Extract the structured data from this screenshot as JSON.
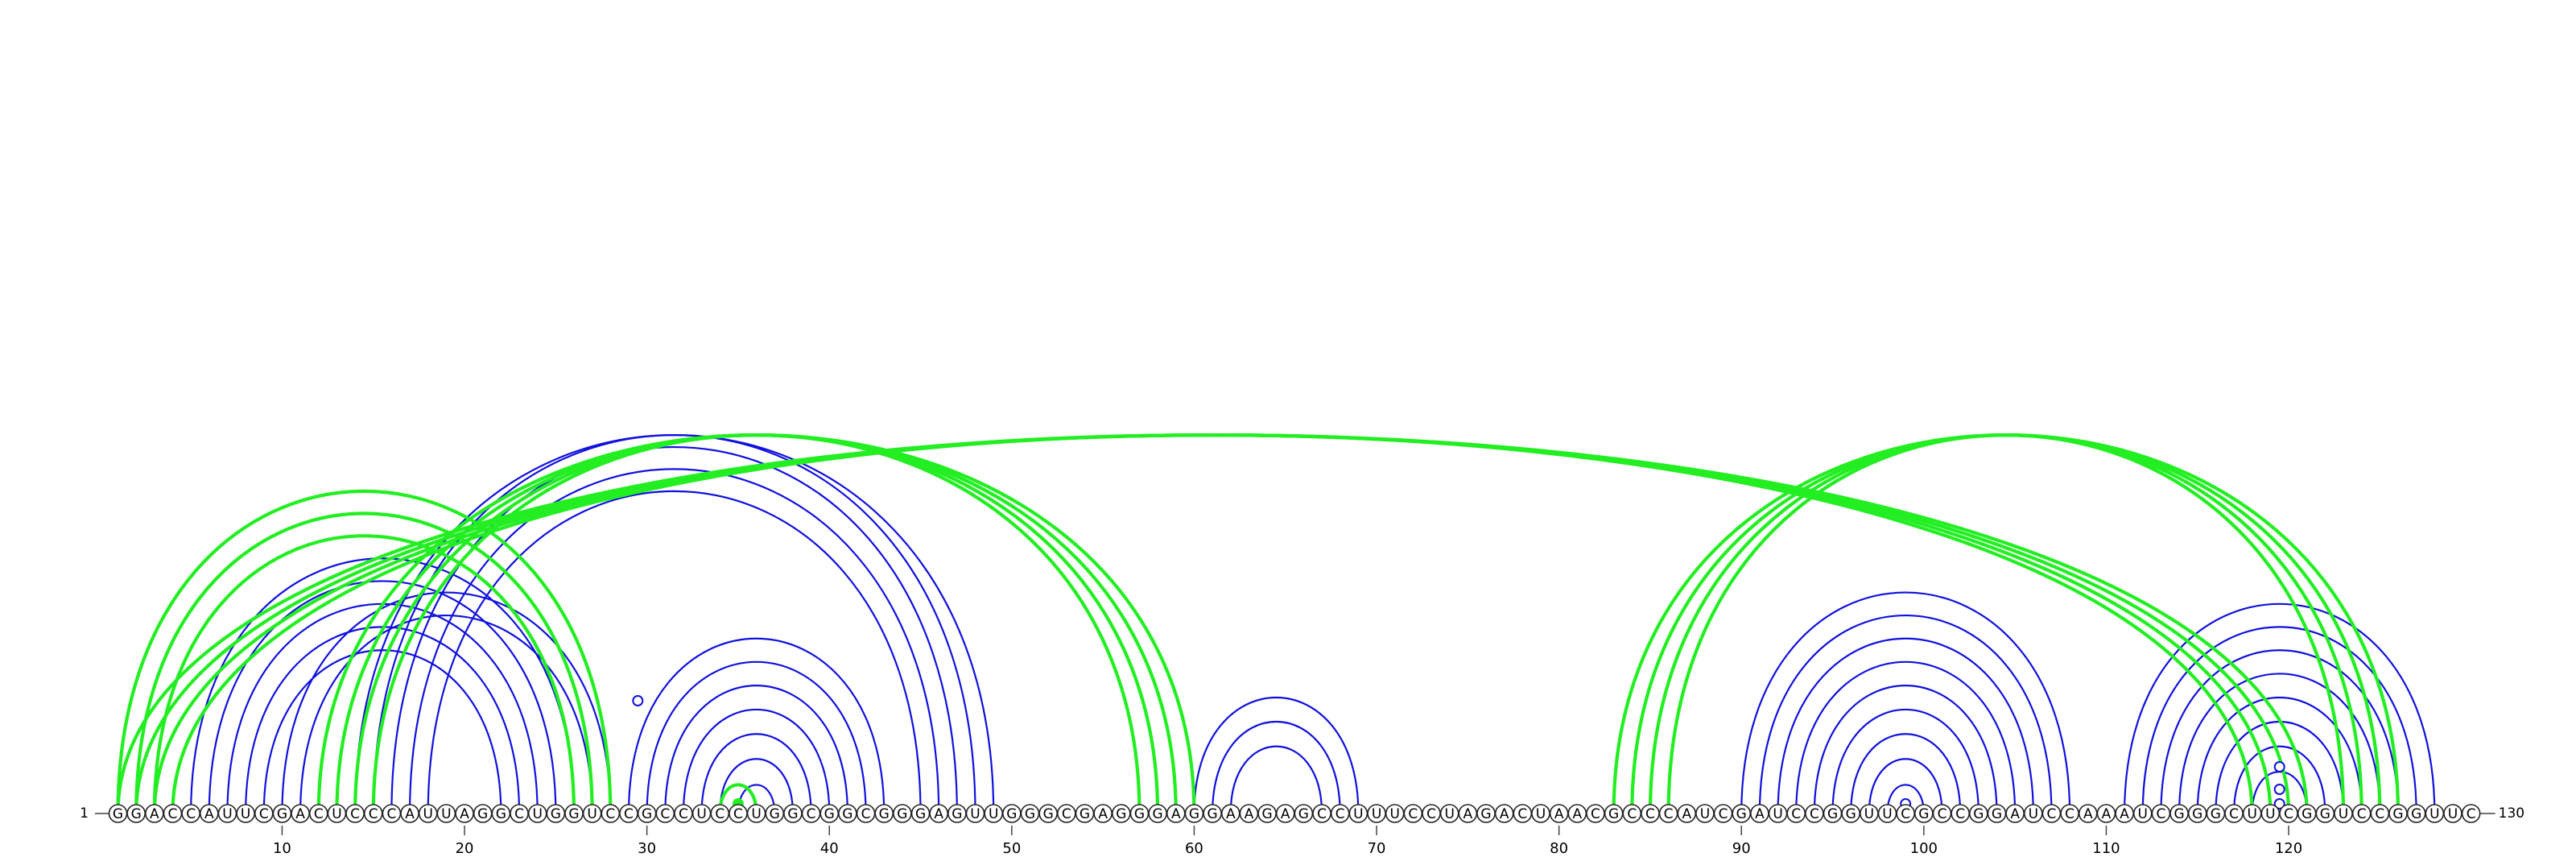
{
  "sequence": "GGACCAUUCGACUCCCAUUAGGCUGGUCCGCCUCCUGGCGGCGGGAGUUGGGCGAGGGAGGAAGAGCCUUUCCUAGACUAACGCCCAUCGAUCCGGUUCGCCGGAUCCAAAUCGGGCUUCGGUCCGGUUC",
  "start_label": "1",
  "end_label": "130",
  "ticks": [
    10,
    20,
    30,
    40,
    50,
    60,
    70,
    80,
    90,
    100,
    110,
    120
  ],
  "colors": {
    "blue": "#1010dd",
    "green": "#22ee22",
    "outline": "#222222"
  },
  "blue_arcs": [
    [
      5,
      26
    ],
    [
      6,
      25
    ],
    [
      7,
      24
    ],
    [
      8,
      23
    ],
    [
      9,
      22
    ],
    [
      10,
      28
    ],
    [
      11,
      27
    ],
    [
      14,
      49
    ],
    [
      15,
      48
    ],
    [
      16,
      47
    ],
    [
      17,
      46
    ],
    [
      18,
      45
    ],
    [
      29,
      43
    ],
    [
      30,
      42
    ],
    [
      31,
      41
    ],
    [
      32,
      40
    ],
    [
      33,
      39
    ],
    [
      34,
      38
    ],
    [
      35,
      37
    ],
    [
      60,
      69
    ],
    [
      61,
      68
    ],
    [
      62,
      67
    ],
    [
      90,
      108
    ],
    [
      91,
      107
    ],
    [
      92,
      106
    ],
    [
      93,
      105
    ],
    [
      94,
      104
    ],
    [
      95,
      103
    ],
    [
      96,
      102
    ],
    [
      97,
      101
    ],
    [
      98,
      100
    ],
    [
      111,
      128
    ],
    [
      112,
      127
    ],
    [
      113,
      126
    ],
    [
      114,
      125
    ],
    [
      115,
      124
    ],
    [
      116,
      123
    ],
    [
      117,
      122
    ],
    [
      118,
      121
    ]
  ],
  "green_arcs": [
    [
      1,
      121
    ],
    [
      2,
      120
    ],
    [
      3,
      119
    ],
    [
      4,
      118
    ],
    [
      1,
      28
    ],
    [
      2,
      27
    ],
    [
      3,
      26
    ],
    [
      12,
      60
    ],
    [
      13,
      59
    ],
    [
      14,
      58
    ],
    [
      15,
      57
    ],
    [
      34,
      36
    ],
    [
      83,
      126
    ],
    [
      84,
      125
    ],
    [
      85,
      124
    ],
    [
      86,
      123
    ]
  ],
  "markers": [
    {
      "color": "blue",
      "x": 29.5,
      "h": 140
    },
    {
      "color": "green",
      "x": 35,
      "h": 12
    },
    {
      "color": "blue",
      "x": 99,
      "h": 12
    },
    {
      "color": "blue",
      "x": 119.5,
      "h": 12
    },
    {
      "color": "blue",
      "x": 119.5,
      "h": 30
    },
    {
      "color": "blue",
      "x": 119.5,
      "h": 58
    }
  ]
}
